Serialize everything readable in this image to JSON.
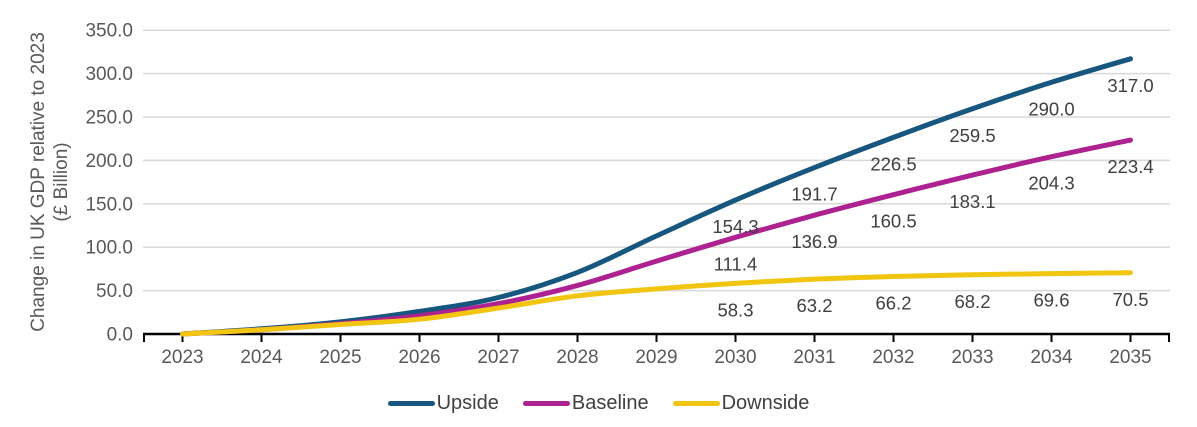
{
  "chart_data": {
    "type": "line",
    "title": "",
    "ylabel_line1": "Change in UK GDP relative to 2023",
    "ylabel_line2": "(£ Billion)",
    "categories": [
      2023,
      2024,
      2025,
      2026,
      2027,
      2028,
      2029,
      2030,
      2031,
      2032,
      2033,
      2034,
      2035
    ],
    "series": [
      {
        "name": "Upside",
        "color": "#17567E",
        "values": [
          0,
          6,
          14,
          26,
          42,
          71,
          113,
          154.3,
          191.7,
          226.5,
          259.5,
          290.0,
          317.0
        ]
      },
      {
        "name": "Baseline",
        "color": "#AE2190",
        "values": [
          0,
          5,
          12,
          21,
          35,
          56,
          84,
          111.4,
          136.9,
          160.5,
          183.1,
          204.3,
          223.4
        ]
      },
      {
        "name": "Downside",
        "color": "#F2C511",
        "values": [
          0,
          5,
          11,
          17,
          30,
          44,
          52,
          58.3,
          63.2,
          66.2,
          68.2,
          69.6,
          70.5
        ]
      }
    ],
    "data_labels_start_year": 2030,
    "y_ticks": [
      0,
      50,
      100,
      150,
      200,
      250,
      300,
      350
    ],
    "ylim": [
      0,
      350
    ],
    "grid": true,
    "legend_position": "bottom"
  },
  "style": {
    "grid_color": "#D9D9D9",
    "axis_color": "#000000",
    "axis_text_color": "#595959",
    "data_label_color": "#404040"
  }
}
